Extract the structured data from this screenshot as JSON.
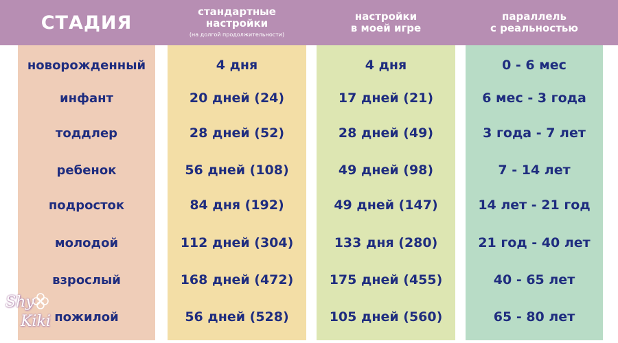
{
  "header": {
    "stage": "СТАДИЯ",
    "standard_line1": "стандартные",
    "standard_line2": "настройки",
    "standard_note": "(на долгой продолжительности)",
    "mine_line1": "настройки",
    "mine_line2": "в моей игре",
    "real_line1": "параллель",
    "real_line2": "с реальностью"
  },
  "rows": [
    {
      "stage": "новорожденный",
      "standard": "4 дня",
      "mine": "4 дня",
      "real": "0 - 6 мес"
    },
    {
      "stage": "инфант",
      "standard": "20 дней (24)",
      "mine": "17 дней (21)",
      "real": "6 мес - 3 года"
    },
    {
      "stage": "тоддлер",
      "standard": "28 дней (52)",
      "mine": "28 дней (49)",
      "real": "3 года - 7 лет"
    },
    {
      "stage": "ребенок",
      "standard": "56 дней (108)",
      "mine": "49 дней (98)",
      "real": "7 - 14 лет"
    },
    {
      "stage": "подросток",
      "standard": "84 дня (192)",
      "mine": "49 дней (147)",
      "real": "14 лет - 21 год"
    },
    {
      "stage": "молодой",
      "standard": "112 дней (304)",
      "mine": "133 дня (280)",
      "real": "21 год - 40 лет"
    },
    {
      "stage": "взрослый",
      "standard": "168 дней (472)",
      "mine": "175 дней (455)",
      "real": "40 - 65 лет"
    },
    {
      "stage": "пожилой",
      "standard": "56 дней (528)",
      "mine": "105 дней (560)",
      "real": "65 - 80 лет"
    }
  ],
  "watermark": {
    "line1": "Shy",
    "line2": "Kiki",
    "icon": "clover-icon"
  },
  "colors": {
    "header_bg": "#b78eb3",
    "stage_col": "#efcdb8",
    "standard_col": "#f3dea6",
    "mine_col": "#dde6b2",
    "real_col": "#b8dcc6",
    "text": "#1f2d7f"
  }
}
